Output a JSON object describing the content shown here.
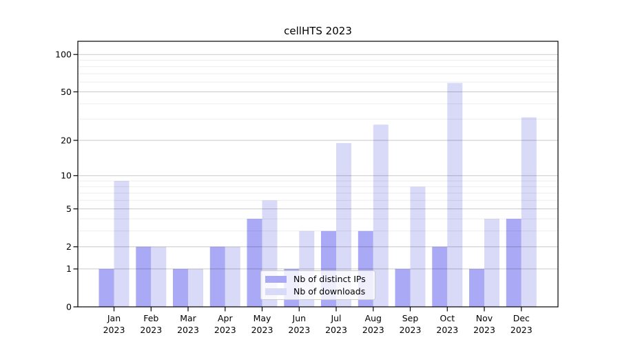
{
  "title": "cellHTS 2023",
  "colors": {
    "bar_distinct_ips": "#a9a9f5",
    "bar_downloads": "#d9d9f8",
    "gridline_major": "rgba(0,0,0,0.21)",
    "gridline_minor": "rgba(0,0,0,0.07)",
    "axis_frame": "#000000",
    "text": "#000000",
    "legend_border": "#cccccc"
  },
  "legend": {
    "items": [
      {
        "label": "Nb of distinct IPs",
        "series_key": "distinct_ips"
      },
      {
        "label": "Nb of downloads",
        "series_key": "downloads"
      }
    ]
  },
  "chart_data": {
    "type": "bar",
    "title": "cellHTS 2023",
    "xlabel": "",
    "ylabel": "",
    "y_scale": "log1p",
    "ylim": [
      0,
      130
    ],
    "grid": "on",
    "legend_position": "lower-center-inside",
    "categories": [
      "Jan",
      "Feb",
      "Mar",
      "Apr",
      "May",
      "Jun",
      "Jul",
      "Aug",
      "Sep",
      "Oct",
      "Nov",
      "Dec"
    ],
    "category_year": "2023",
    "series": [
      {
        "name": "Nb of distinct IPs",
        "color": "#a9a9f5",
        "values": [
          1,
          2,
          1,
          2,
          4,
          1,
          3,
          3,
          1,
          2,
          1,
          4
        ]
      },
      {
        "name": "Nb of downloads",
        "color": "#d9d9f8",
        "values": [
          9,
          2,
          1,
          2,
          6,
          3,
          19,
          27,
          8,
          59,
          4,
          31
        ]
      }
    ],
    "y_major_ticks": [
      0,
      1,
      2,
      5,
      10,
      20,
      50,
      100
    ],
    "y_major_tick_labels": [
      "0",
      "1",
      "2",
      "5",
      "10",
      "20",
      "50",
      "100"
    ],
    "y_minor_gridlines": [
      3,
      4,
      6,
      7,
      8,
      9,
      30,
      40,
      60,
      70,
      80,
      90
    ]
  }
}
